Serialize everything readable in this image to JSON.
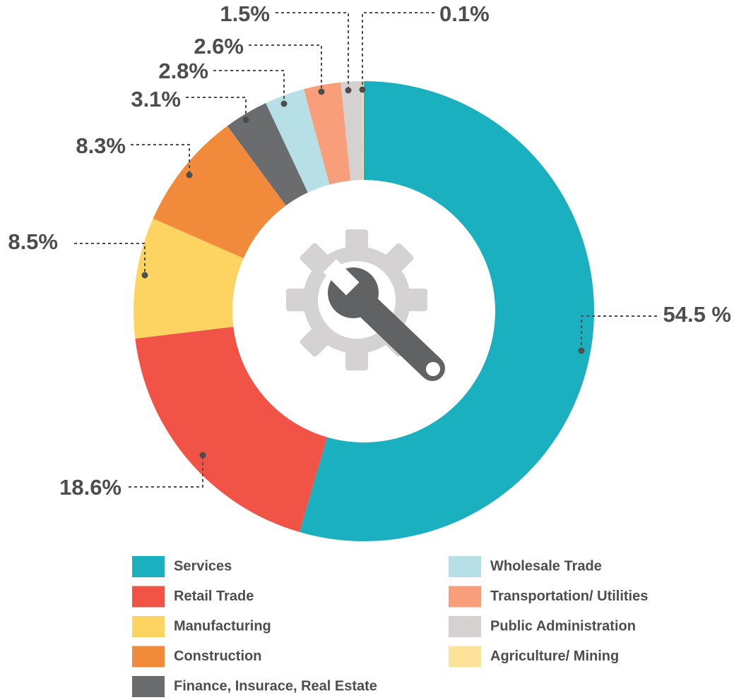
{
  "chart_data": {
    "type": "donut",
    "categories": [
      "Services",
      "Retail Trade",
      "Manufacturing",
      "Construction",
      "Finance, Insurace, Real Estate",
      "Wholesale Trade",
      "Transportation/ Utilities",
      "Public Administration",
      "Agriculture/ Mining"
    ],
    "values": [
      54.5,
      18.6,
      8.5,
      8.3,
      3.1,
      2.8,
      2.6,
      1.5,
      0.1
    ],
    "value_labels": [
      "54.5 %",
      "18.6%",
      "8.5%",
      "8.3%",
      "3.1%",
      "2.8%",
      "2.6%",
      "1.5%",
      "0.1%"
    ],
    "colors": [
      "#1ab0bf",
      "#f15346",
      "#fdd362",
      "#f18a3a",
      "#6b6c6e",
      "#b6dfe6",
      "#f89e7b",
      "#d5d1d1",
      "#fde39a"
    ]
  }
}
